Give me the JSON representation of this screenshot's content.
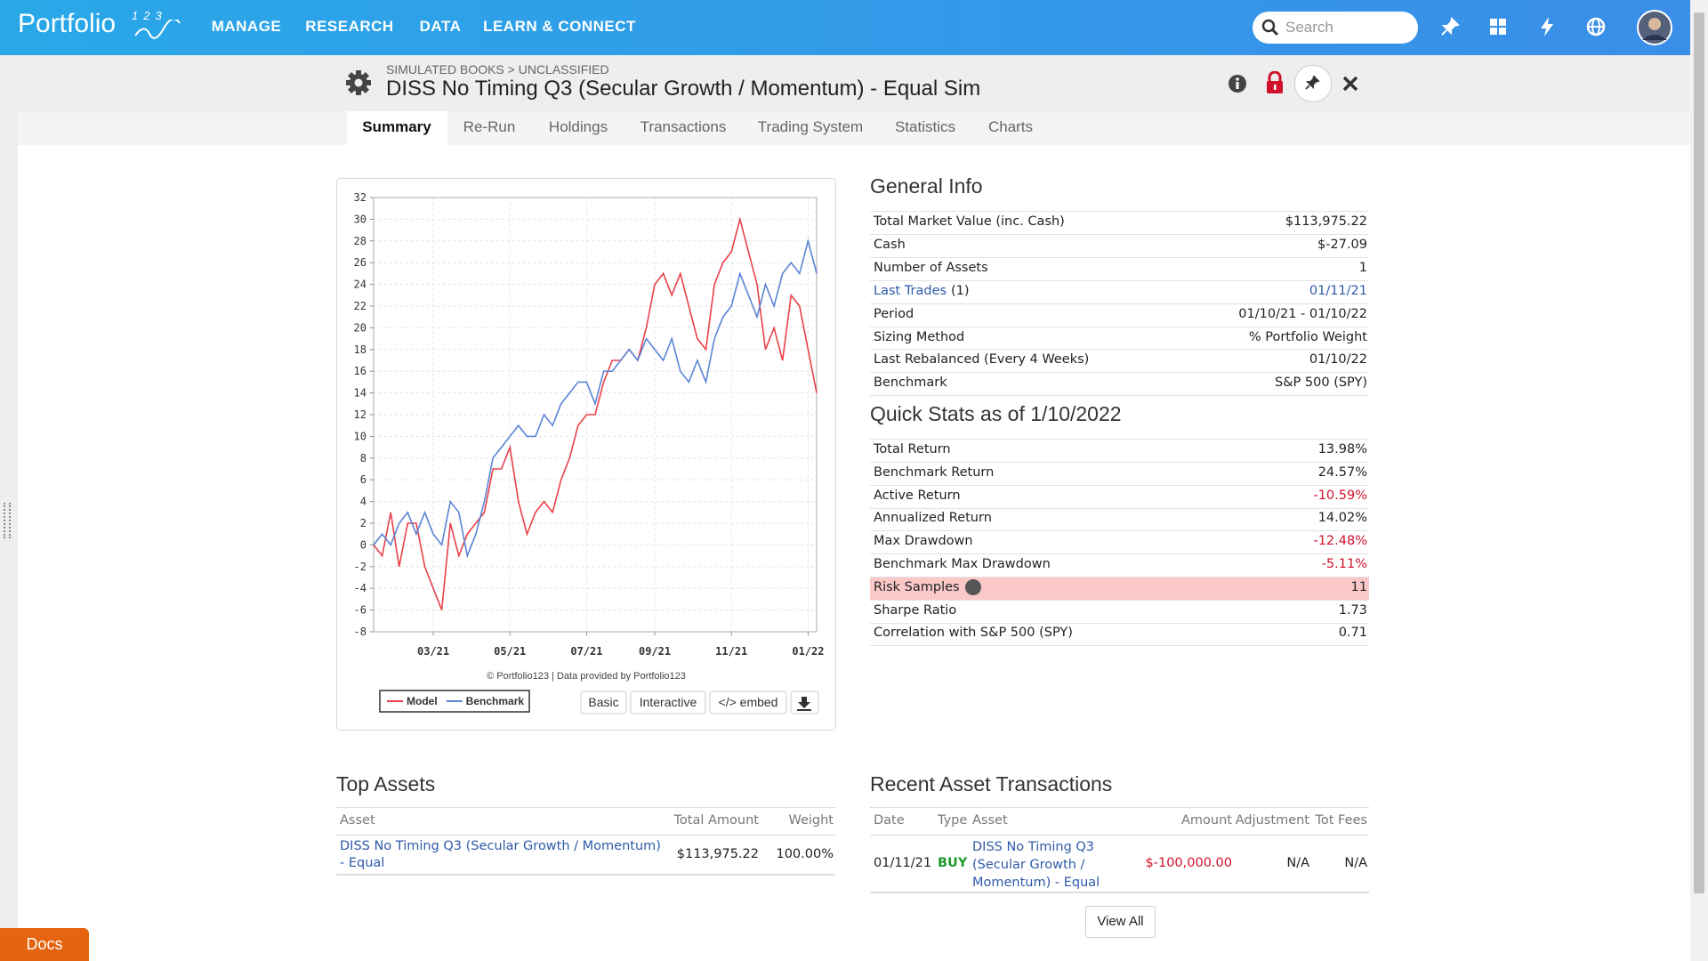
{
  "nav": {
    "brand": "Portfolio",
    "brand_sup": "123",
    "menu": [
      "MANAGE",
      "RESEARCH",
      "DATA",
      "LEARN & CONNECT"
    ],
    "search": "Search"
  },
  "header": {
    "breadcrumb": "SIMULATED BOOKS > UNCLASSIFIED",
    "title": "DISS No Timing Q3 (Secular Growth / Momentum) - Equal Sim"
  },
  "tabs": [
    "Summary",
    "Re-Run",
    "Holdings",
    "Transactions",
    "Trading System",
    "Statistics",
    "Charts"
  ],
  "general_info": {
    "title": "General Info",
    "rows": [
      {
        "label": "Total Market Value (inc. Cash)",
        "value": "$113,975.22"
      },
      {
        "label": "Cash",
        "value": "$-27.09"
      },
      {
        "label": "Number of Assets",
        "value": "1"
      },
      {
        "label": "Last Trades",
        "suffix": "(1)",
        "value": "01/11/21",
        "link": true
      },
      {
        "label": "Period",
        "value": "01/10/21 - 01/10/22"
      },
      {
        "label": "Sizing Method",
        "value": "% Portfolio Weight"
      },
      {
        "label": "Last Rebalanced (Every 4 Weeks)",
        "value": "01/10/22"
      },
      {
        "label": "Benchmark",
        "value": "S&P 500 (SPY)"
      }
    ]
  },
  "quick_stats": {
    "title": "Quick Stats as of 1/10/2022",
    "rows": [
      {
        "label": "Total Return",
        "value": "13.98%"
      },
      {
        "label": "Benchmark Return",
        "value": "24.57%"
      },
      {
        "label": "Active Return",
        "value": "-10.59%"
      },
      {
        "label": "Annualized Return",
        "value": "14.02%"
      },
      {
        "label": "Max Drawdown",
        "value": "-12.48%"
      },
      {
        "label": "Benchmark Max Drawdown",
        "value": "-5.11%"
      },
      {
        "label": "Risk Samples",
        "value": "11",
        "highlight": true
      },
      {
        "label": "Sharpe Ratio",
        "value": "1.73"
      },
      {
        "label": "Correlation with S&P 500 (SPY)",
        "value": "0.71"
      }
    ]
  },
  "chart_data": {
    "type": "line",
    "categories": [
      null,
      null,
      null,
      null,
      null,
      null,
      null,
      "03/21",
      null,
      null,
      null,
      null,
      null,
      null,
      null,
      null,
      "05/21",
      null,
      null,
      null,
      null,
      null,
      null,
      null,
      null,
      "07/21",
      null,
      null,
      null,
      null,
      null,
      null,
      null,
      "09/21",
      null,
      null,
      null,
      null,
      null,
      null,
      null,
      null,
      "11/21",
      null,
      null,
      null,
      null,
      null,
      null,
      null,
      null,
      "01/22",
      null
    ],
    "series": [
      {
        "name": "Model",
        "color": "#e8414a",
        "values": [
          0,
          -1,
          3,
          -2,
          2,
          2,
          -2,
          -4,
          -6,
          2,
          -1,
          1,
          2,
          3,
          7,
          7,
          9,
          4,
          1,
          3,
          4,
          3,
          6,
          8,
          11,
          12,
          12,
          15,
          17,
          17,
          18,
          17,
          20,
          24,
          25,
          23,
          25,
          22,
          19,
          18,
          24,
          26,
          27,
          30,
          27,
          24,
          18,
          20,
          17,
          23,
          22,
          18,
          14
        ]
      },
      {
        "name": "Benchmark",
        "color": "#5b84d6",
        "values": [
          0,
          1,
          0,
          2,
          3,
          1,
          3,
          1,
          0,
          4,
          3,
          -1,
          1,
          4,
          8,
          9,
          10,
          11,
          10,
          10,
          12,
          11,
          13,
          14,
          15,
          15,
          13,
          16,
          16,
          17,
          18,
          17,
          19,
          18,
          17,
          19,
          16,
          15,
          17,
          15,
          19,
          21,
          22,
          25,
          23,
          21,
          24,
          22,
          25,
          26,
          25,
          28,
          25
        ]
      }
    ],
    "ylim": [
      -8,
      32
    ],
    "yticks": [
      -8,
      -6,
      -4,
      -2,
      0,
      2,
      4,
      6,
      8,
      10,
      12,
      14,
      16,
      18,
      20,
      22,
      24,
      26,
      28,
      30,
      32
    ],
    "grid": true,
    "credit": "© Portfolio123 | Data provided by Portfolio123",
    "buttons": [
      "Basic",
      "Interactive",
      "</> embed"
    ]
  },
  "top_assets": {
    "title": "Top Assets",
    "headers": [
      "Asset",
      "Total Amount",
      "Weight"
    ],
    "rows": [
      [
        "DISS No Timing Q3 (Secular Growth / Momentum) - Equal",
        "$113,975.22",
        "100.00%"
      ]
    ]
  },
  "transactions": {
    "title": "Recent Asset Transactions",
    "headers": [
      "Date",
      "Type",
      "Asset",
      "Amount",
      "Adjustment",
      "Tot Fees"
    ],
    "rows": [
      [
        "01/11/21",
        "BUY",
        "DISS No Timing Q3 (Secular Growth / Momentum) - Equal",
        "$-100,000.00",
        "N/A",
        "N/A"
      ]
    ],
    "button": "View All"
  },
  "docs": "Docs"
}
